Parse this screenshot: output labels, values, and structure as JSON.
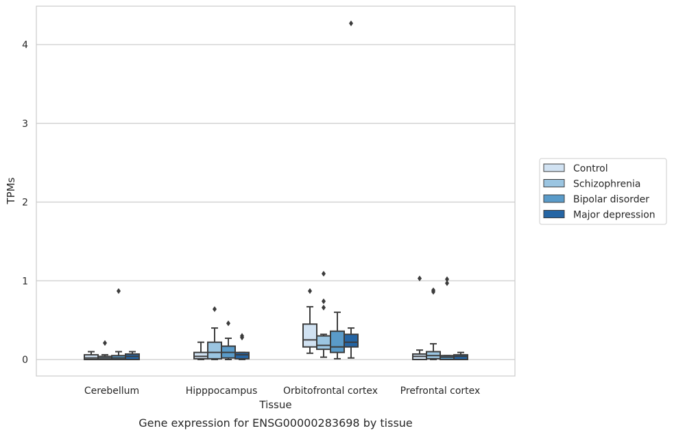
{
  "chart_data": {
    "type": "box",
    "caption": "Gene expression for ENSG00000283698 by tissue",
    "xlabel": "Tissue",
    "ylabel": "TPMs",
    "ylim": [
      -0.2,
      4.5
    ],
    "yticks": [
      0,
      1,
      2,
      3,
      4
    ],
    "grid": true,
    "legend_position": "right",
    "categories": [
      "Cerebellum",
      "Hipppocampus",
      "Orbitofrontal cortex",
      "Prefrontal cortex"
    ],
    "series": [
      {
        "name": "Control",
        "color": "#d1e2f2",
        "boxes": [
          {
            "whislo": 0.0,
            "q1": 0.0,
            "med": 0.02,
            "q3": 0.06,
            "whishi": 0.1,
            "fliers": []
          },
          {
            "whislo": 0.0,
            "q1": 0.01,
            "med": 0.04,
            "q3": 0.09,
            "whishi": 0.22,
            "fliers": []
          },
          {
            "whislo": 0.08,
            "q1": 0.16,
            "med": 0.25,
            "q3": 0.45,
            "whishi": 0.67,
            "fliers": [
              0.87
            ]
          },
          {
            "whislo": 0.0,
            "q1": 0.0,
            "med": 0.04,
            "q3": 0.07,
            "whishi": 0.12,
            "fliers": [
              1.03
            ]
          }
        ]
      },
      {
        "name": "Schizophrenia",
        "color": "#9bc5e1",
        "boxes": [
          {
            "whislo": 0.0,
            "q1": 0.0,
            "med": 0.02,
            "q3": 0.04,
            "whishi": 0.06,
            "fliers": [
              0.21
            ]
          },
          {
            "whislo": 0.0,
            "q1": 0.01,
            "med": 0.09,
            "q3": 0.22,
            "whishi": 0.4,
            "fliers": [
              0.64
            ]
          },
          {
            "whislo": 0.03,
            "q1": 0.13,
            "med": 0.18,
            "q3": 0.3,
            "whishi": 0.32,
            "fliers": [
              0.66,
              0.74,
              1.09
            ]
          },
          {
            "whislo": 0.0,
            "q1": 0.01,
            "med": 0.05,
            "q3": 0.1,
            "whishi": 0.2,
            "fliers": [
              0.86,
              0.88
            ]
          }
        ]
      },
      {
        "name": "Bipolar disorder",
        "color": "#5a9bc9",
        "boxes": [
          {
            "whislo": 0.0,
            "q1": 0.0,
            "med": 0.02,
            "q3": 0.05,
            "whishi": 0.1,
            "fliers": [
              0.87
            ]
          },
          {
            "whislo": 0.0,
            "q1": 0.02,
            "med": 0.09,
            "q3": 0.17,
            "whishi": 0.27,
            "fliers": [
              0.46
            ]
          },
          {
            "whislo": 0.01,
            "q1": 0.09,
            "med": 0.16,
            "q3": 0.36,
            "whishi": 0.6,
            "fliers": []
          },
          {
            "whislo": 0.0,
            "q1": 0.0,
            "med": 0.03,
            "q3": 0.05,
            "whishi": 0.05,
            "fliers": [
              0.97,
              1.02
            ]
          }
        ]
      },
      {
        "name": "Major depression",
        "color": "#2565a4",
        "boxes": [
          {
            "whislo": 0.0,
            "q1": 0.0,
            "med": 0.04,
            "q3": 0.07,
            "whishi": 0.1,
            "fliers": []
          },
          {
            "whislo": 0.0,
            "q1": 0.01,
            "med": 0.06,
            "q3": 0.09,
            "whishi": 0.09,
            "fliers": [
              0.28,
              0.3
            ]
          },
          {
            "whislo": 0.02,
            "q1": 0.16,
            "med": 0.22,
            "q3": 0.32,
            "whishi": 0.4,
            "fliers": [
              4.27
            ]
          },
          {
            "whislo": 0.0,
            "q1": 0.0,
            "med": 0.04,
            "q3": 0.06,
            "whishi": 0.09,
            "fliers": []
          }
        ]
      }
    ]
  }
}
